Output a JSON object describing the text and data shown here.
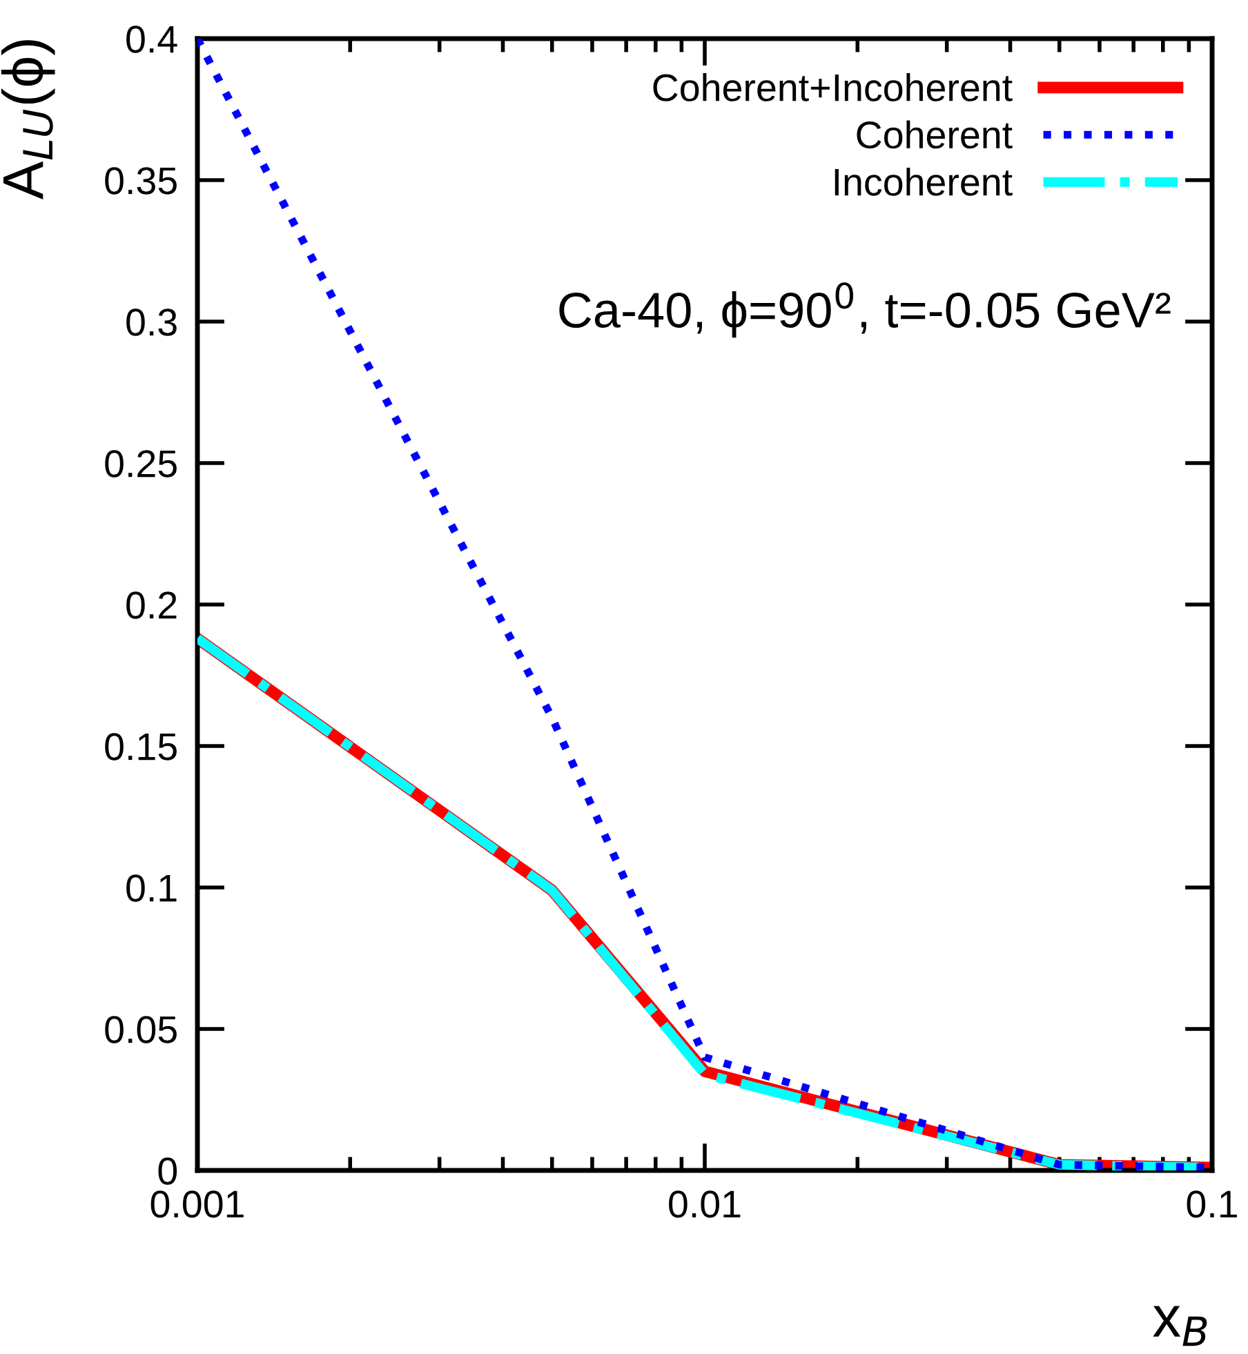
{
  "chart_data": {
    "type": "line",
    "xlabel": "x$_{B}$",
    "ylabel": "A$_{LU}$(ϕ)",
    "x": [
      0.001,
      0.005,
      0.01,
      0.05,
      0.1
    ],
    "series": [
      {
        "name": "Coherent+Incoherent",
        "color": "#ff0000",
        "line_style": "solid",
        "values": [
          0.188,
          0.099,
          0.035,
          0.002,
          0.001
        ]
      },
      {
        "name": "Coherent",
        "color": "#0000ff",
        "line_style": "dotted",
        "values": [
          0.4,
          0.16,
          0.04,
          0.002,
          0.001
        ]
      },
      {
        "name": "Incoherent",
        "color": "#00ffff",
        "line_style": "dashdot",
        "values": [
          0.188,
          0.099,
          0.034,
          0.002,
          0.001
        ]
      }
    ],
    "log": "x",
    "xlim": [
      0.001,
      0.1
    ],
    "xticks": [
      0.001,
      0.01,
      0.1
    ],
    "ylim": [
      0,
      0.4
    ],
    "yticks": [
      0,
      0.05,
      0.1,
      0.15,
      0.2,
      0.25,
      0.3,
      0.35,
      0.4
    ],
    "grid": false,
    "legend": "top right",
    "marker": "none",
    "annotations": [
      "Ca-40, ϕ=90$^{0}$, t=-0.05 GeV²"
    ]
  }
}
